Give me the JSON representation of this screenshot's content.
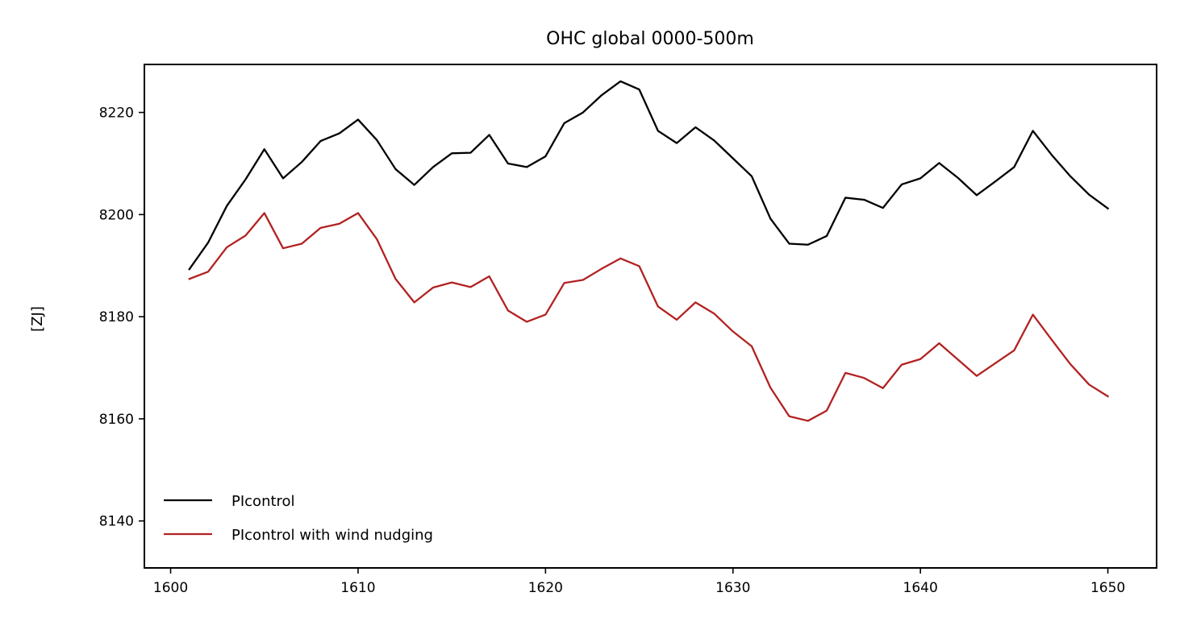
{
  "chart_data": {
    "type": "line",
    "title": "OHC global 0000-500m",
    "xlabel": "",
    "ylabel": "[ZJ]",
    "xlim": [
      1598.6,
      1652.6
    ],
    "ylim": [
      8130.8,
      8229.4
    ],
    "xticks": [
      1600,
      1610,
      1620,
      1630,
      1640,
      1650
    ],
    "yticks": [
      8140,
      8160,
      8180,
      8200,
      8220
    ],
    "grid": false,
    "legend_position": "lower-left",
    "x": [
      1601,
      1602,
      1603,
      1604,
      1605,
      1606,
      1607,
      1608,
      1609,
      1610,
      1611,
      1612,
      1613,
      1614,
      1615,
      1616,
      1617,
      1618,
      1619,
      1620,
      1621,
      1622,
      1623,
      1624,
      1625,
      1626,
      1627,
      1628,
      1629,
      1630,
      1631,
      1632,
      1633,
      1634,
      1635,
      1636,
      1637,
      1638,
      1639,
      1640,
      1641,
      1642,
      1643,
      1644,
      1645,
      1646,
      1647,
      1648,
      1649,
      1650
    ],
    "series": [
      {
        "name": "PIcontrol",
        "color": "#000000",
        "values": [
          8189.3,
          8194.5,
          8201.7,
          8206.9,
          8212.8,
          8207.1,
          8210.3,
          8214.4,
          8215.9,
          8218.6,
          8214.6,
          8208.9,
          8205.8,
          8209.3,
          8212.0,
          8212.1,
          8215.6,
          8210.0,
          8209.3,
          8211.4,
          8217.9,
          8220.0,
          8223.4,
          8226.1,
          8224.5,
          8216.4,
          8214.0,
          8217.1,
          8214.5,
          8211.0,
          8207.5,
          8199.2,
          8194.3,
          8194.1,
          8195.8,
          8203.3,
          8202.9,
          8201.3,
          8205.9,
          8207.1,
          8210.1,
          8207.2,
          8203.8,
          8206.5,
          8209.3,
          8216.4,
          8211.7,
          8207.5,
          8203.9,
          8201.2
        ]
      },
      {
        "name": "PIcontrol with wind nudging",
        "color": "#b22222",
        "values": [
          8187.4,
          8188.8,
          8193.6,
          8195.9,
          8200.3,
          8193.4,
          8194.3,
          8197.4,
          8198.2,
          8200.3,
          8195.2,
          8187.4,
          8182.8,
          8185.7,
          8186.7,
          8185.8,
          8187.9,
          8181.2,
          8179.0,
          8180.4,
          8186.6,
          8187.2,
          8189.4,
          8191.4,
          8189.9,
          8182.0,
          8179.4,
          8182.8,
          8180.6,
          8177.1,
          8174.2,
          8166.1,
          8160.5,
          8159.6,
          8161.6,
          8169.0,
          8168.0,
          8166.0,
          8170.6,
          8171.7,
          8174.8,
          8171.6,
          8168.4,
          8170.9,
          8173.4,
          8180.4,
          8175.5,
          8170.7,
          8166.7,
          8164.4
        ]
      }
    ]
  }
}
